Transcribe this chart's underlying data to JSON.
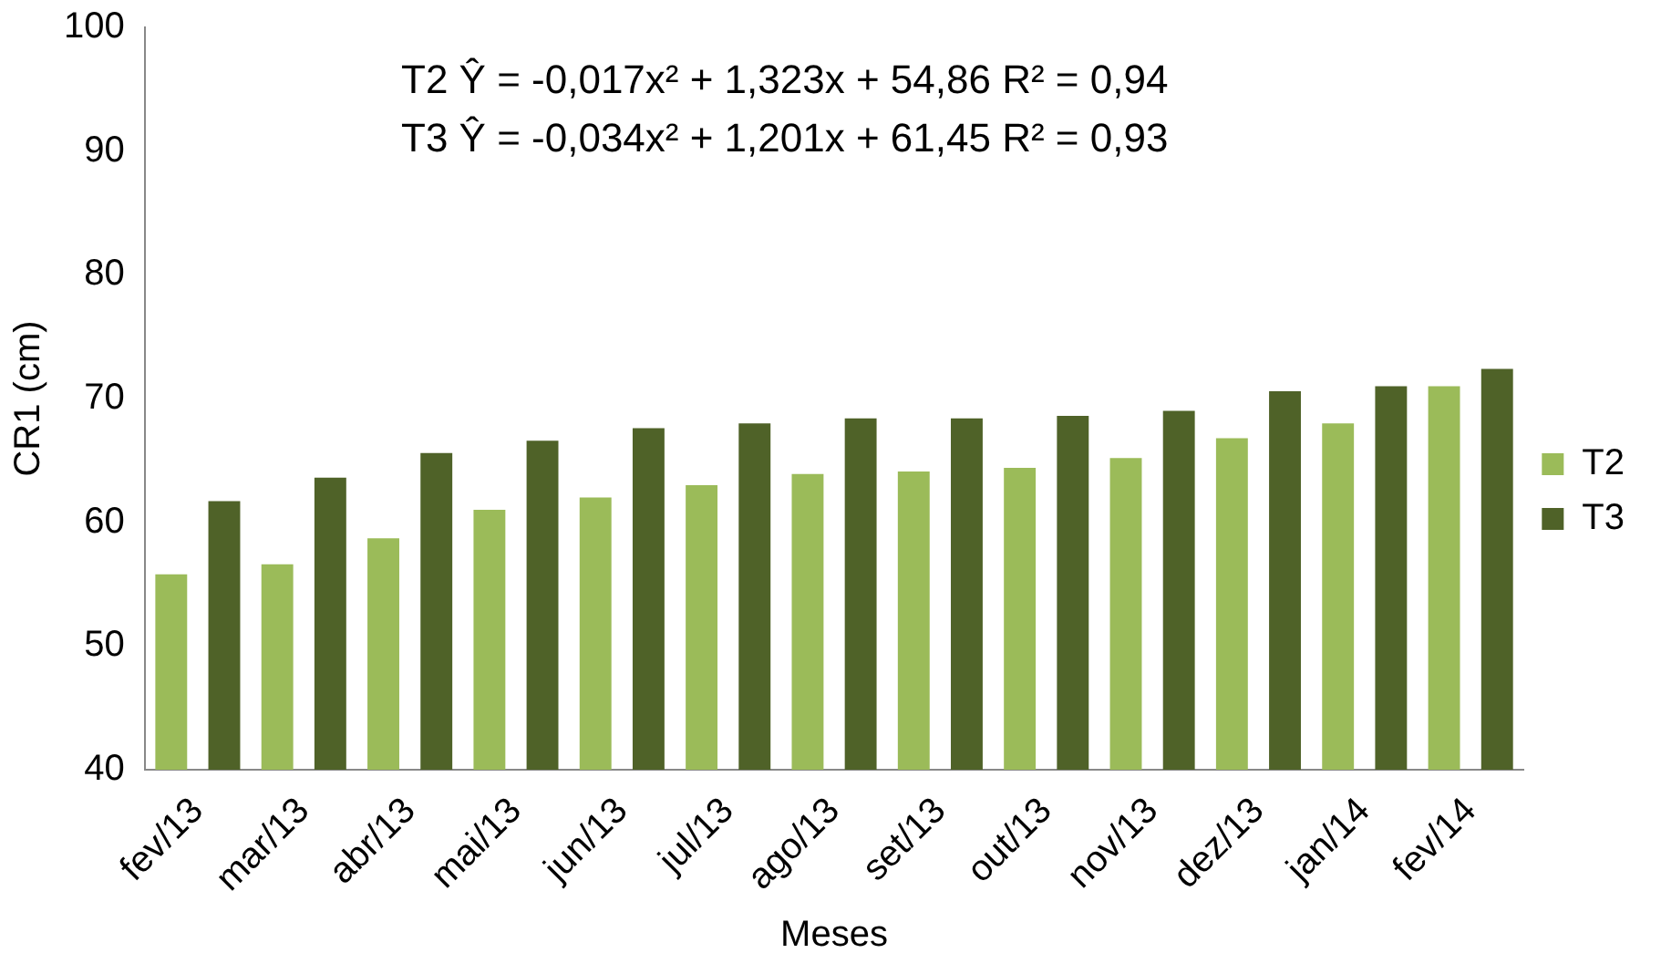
{
  "chart_data": {
    "type": "bar",
    "xlabel": "Meses",
    "ylabel": "CR1 (cm)",
    "categories": [
      "fev/13",
      "mar/13",
      "abr/13",
      "mai/13",
      "jun/13",
      "jul/13",
      "ago/13",
      "set/13",
      "out/13",
      "nov/13",
      "dez/13",
      "jan/14",
      "fev/14"
    ],
    "series": [
      {
        "name": "T2",
        "color": "#9bbb59",
        "values": [
          55.8,
          56.6,
          58.7,
          61,
          62,
          63,
          63.9,
          64.1,
          64.4,
          65.2,
          66.8,
          68,
          71
        ]
      },
      {
        "name": "T3",
        "color": "#4f6228",
        "values": [
          61.7,
          63.6,
          65.6,
          66.6,
          67.6,
          68,
          68.4,
          68.4,
          68.6,
          69,
          70.6,
          71,
          72.4
        ]
      }
    ],
    "ylim": [
      40,
      100
    ],
    "yticks": [
      40,
      50,
      60,
      70,
      80,
      90,
      100
    ],
    "grid": false,
    "legend": "right",
    "annotations": [
      "T2 Ŷ = -0,017x² + 1,323x + 54,86 R² = 0,94",
      "T3 Ŷ = -0,034x² + 1,201x + 61,45 R² = 0,93"
    ]
  }
}
